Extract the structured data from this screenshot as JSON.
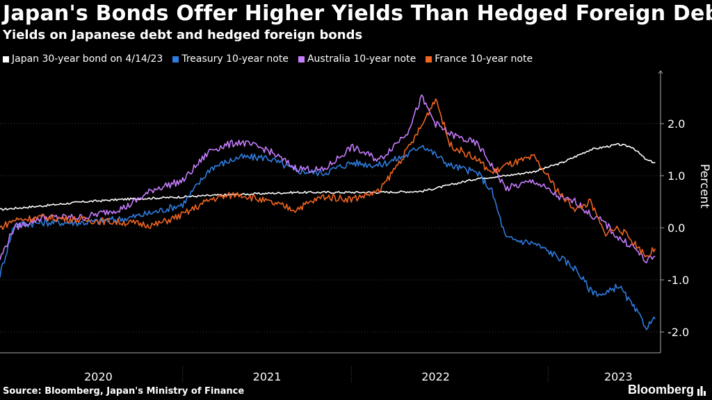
{
  "header": {
    "title": "Japan's Bonds Offer Higher Yields Than Hedged Foreign Debt",
    "subtitle": "Yields on Japanese debt and hedged foreign bonds"
  },
  "footer": {
    "source": "Source: Bloomberg, Japan's Ministry of Finance",
    "brand": "Bloomberg",
    "brand_icon": "bar-chart-icon"
  },
  "chart_data": {
    "type": "line",
    "title": "Japan's Bonds Offer Higher Yields Than Hedged Foreign Debt",
    "subtitle": "Yields on Japanese debt and hedged foreign bonds",
    "xlabel": "",
    "ylabel": "Percent",
    "ylim": [
      -2.4,
      3.0
    ],
    "xlim": [
      "2019-06",
      "2023-05"
    ],
    "y_ticks": [
      2.0,
      1.0,
      0.0,
      -1.0,
      -2.0
    ],
    "y_tick_labels": [
      "2.0",
      "1.0",
      "0.0",
      "-1.0",
      "-2.0"
    ],
    "x_tick_labels": [
      {
        "label": "2020",
        "center": "2020-01"
      },
      {
        "label": "2021",
        "center": "2021-01"
      },
      {
        "label": "2022",
        "center": "2022-01"
      },
      {
        "label": "2023",
        "center": "2023-02"
      }
    ],
    "x_dividers": [
      "2020-07",
      "2021-07",
      "2022-09"
    ],
    "grid": true,
    "legend_position": "top-left",
    "series": [
      {
        "name": "Japan 30-year bond on 4/14/23",
        "color": "#ffffff",
        "points": [
          [
            "2019-06",
            0.35
          ],
          [
            "2019-09",
            0.42
          ],
          [
            "2019-12",
            0.5
          ],
          [
            "2020-03",
            0.55
          ],
          [
            "2020-06",
            0.58
          ],
          [
            "2020-09",
            0.62
          ],
          [
            "2020-12",
            0.65
          ],
          [
            "2021-03",
            0.68
          ],
          [
            "2021-06",
            0.68
          ],
          [
            "2021-09",
            0.68
          ],
          [
            "2021-12",
            0.7
          ],
          [
            "2022-02",
            0.82
          ],
          [
            "2022-04",
            0.95
          ],
          [
            "2022-06",
            1.0
          ],
          [
            "2022-08",
            1.08
          ],
          [
            "2022-10",
            1.25
          ],
          [
            "2022-12",
            1.5
          ],
          [
            "2023-02",
            1.6
          ],
          [
            "2023-03",
            1.55
          ],
          [
            "2023-04",
            1.3
          ],
          [
            "2023-04-20",
            1.25
          ]
        ]
      },
      {
        "name": "Treasury 10-year note",
        "color": "#2f7de1",
        "points": [
          [
            "2019-06",
            -0.9
          ],
          [
            "2019-07",
            0.05
          ],
          [
            "2019-09",
            0.1
          ],
          [
            "2019-12",
            0.1
          ],
          [
            "2020-03",
            0.18
          ],
          [
            "2020-05",
            0.3
          ],
          [
            "2020-07",
            0.45
          ],
          [
            "2020-09",
            1.15
          ],
          [
            "2020-11",
            1.35
          ],
          [
            "2021-01",
            1.35
          ],
          [
            "2021-03",
            1.1
          ],
          [
            "2021-05",
            1.05
          ],
          [
            "2021-07",
            1.25
          ],
          [
            "2021-09",
            1.2
          ],
          [
            "2021-11",
            1.4
          ],
          [
            "2021-12",
            1.6
          ],
          [
            "2022-01",
            1.4
          ],
          [
            "2022-02",
            1.2
          ],
          [
            "2022-04",
            1.05
          ],
          [
            "2022-05",
            0.7
          ],
          [
            "2022-06",
            -0.2
          ],
          [
            "2022-08",
            -0.3
          ],
          [
            "2022-10",
            -0.6
          ],
          [
            "2022-11",
            -0.8
          ],
          [
            "2022-12",
            -1.2
          ],
          [
            "2023-01",
            -1.3
          ],
          [
            "2023-02",
            -1.1
          ],
          [
            "2023-03",
            -1.5
          ],
          [
            "2023-04",
            -1.9
          ],
          [
            "2023-04-20",
            -1.75
          ]
        ]
      },
      {
        "name": "Australia 10-year note",
        "color": "#c77dff",
        "points": [
          [
            "2019-06",
            -0.6
          ],
          [
            "2019-07",
            0.0
          ],
          [
            "2019-09",
            0.2
          ],
          [
            "2019-12",
            0.2
          ],
          [
            "2020-03",
            0.4
          ],
          [
            "2020-05",
            0.75
          ],
          [
            "2020-07",
            0.9
          ],
          [
            "2020-09",
            1.5
          ],
          [
            "2020-11",
            1.65
          ],
          [
            "2021-01",
            1.5
          ],
          [
            "2021-03",
            1.15
          ],
          [
            "2021-05",
            1.1
          ],
          [
            "2021-07",
            1.55
          ],
          [
            "2021-09",
            1.3
          ],
          [
            "2021-11",
            1.85
          ],
          [
            "2021-12",
            2.5
          ],
          [
            "2022-01",
            2.0
          ],
          [
            "2022-02",
            1.8
          ],
          [
            "2022-04",
            1.6
          ],
          [
            "2022-05",
            1.2
          ],
          [
            "2022-06",
            0.75
          ],
          [
            "2022-08",
            0.9
          ],
          [
            "2022-10",
            0.55
          ],
          [
            "2022-11",
            0.5
          ],
          [
            "2022-12",
            0.25
          ],
          [
            "2023-01",
            0.1
          ],
          [
            "2023-02",
            -0.2
          ],
          [
            "2023-03",
            -0.35
          ],
          [
            "2023-04",
            -0.65
          ],
          [
            "2023-04-20",
            -0.55
          ]
        ]
      },
      {
        "name": "France 10-year note",
        "color": "#f26522",
        "points": [
          [
            "2019-06",
            0.0
          ],
          [
            "2019-07",
            0.15
          ],
          [
            "2019-09",
            0.2
          ],
          [
            "2019-12",
            0.15
          ],
          [
            "2020-03",
            0.1
          ],
          [
            "2020-05",
            0.05
          ],
          [
            "2020-07",
            0.25
          ],
          [
            "2020-09",
            0.55
          ],
          [
            "2020-11",
            0.65
          ],
          [
            "2021-01",
            0.5
          ],
          [
            "2021-03",
            0.35
          ],
          [
            "2021-05",
            0.6
          ],
          [
            "2021-07",
            0.55
          ],
          [
            "2021-09",
            0.7
          ],
          [
            "2021-11",
            1.5
          ],
          [
            "2021-12",
            1.95
          ],
          [
            "2022-01",
            2.5
          ],
          [
            "2022-02",
            1.6
          ],
          [
            "2022-04",
            1.3
          ],
          [
            "2022-05",
            1.05
          ],
          [
            "2022-06",
            1.2
          ],
          [
            "2022-08",
            1.35
          ],
          [
            "2022-10",
            0.6
          ],
          [
            "2022-11",
            0.35
          ],
          [
            "2022-12",
            0.5
          ],
          [
            "2023-01",
            -0.1
          ],
          [
            "2023-02",
            0.0
          ],
          [
            "2023-03",
            -0.25
          ],
          [
            "2023-04",
            -0.55
          ],
          [
            "2023-04-20",
            -0.4
          ]
        ]
      }
    ]
  }
}
